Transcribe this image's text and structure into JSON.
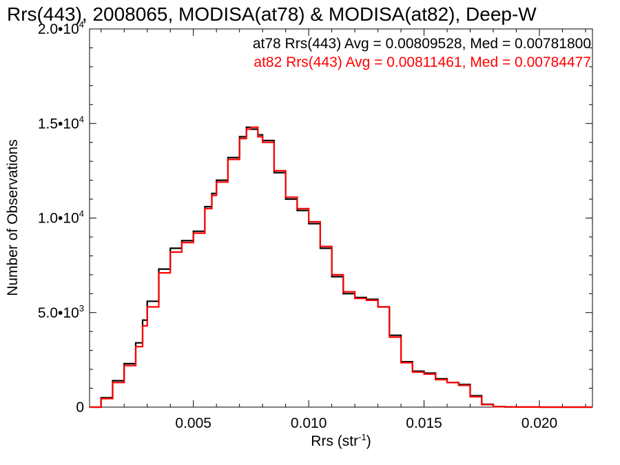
{
  "chart_data": {
    "type": "line",
    "title": "Rrs(443), 2008065, MODISA(at78) & MODISA(at82), Deep-W",
    "xlabel": "Rrs (str",
    "xlabel_sup": "-1",
    "xlabel_end": ")",
    "ylabel": "Number of Observations",
    "xlim": [
      0.0005,
      0.0223
    ],
    "ylim": [
      0,
      20000
    ],
    "xticks": [
      {
        "value": 0.005,
        "label": "0.005"
      },
      {
        "value": 0.01,
        "label": "0.010"
      },
      {
        "value": 0.015,
        "label": "0.015"
      },
      {
        "value": 0.02,
        "label": "0.020"
      }
    ],
    "yticks": [
      {
        "value": 0,
        "mant": "0",
        "exp": ""
      },
      {
        "value": 5000,
        "mant": "5.0•10",
        "exp": "3"
      },
      {
        "value": 10000,
        "mant": "1.0•10",
        "exp": "4"
      },
      {
        "value": 15000,
        "mant": "1.5•10",
        "exp": "4"
      },
      {
        "value": 20000,
        "mant": "2.0•10",
        "exp": "4"
      }
    ],
    "grid": false,
    "step": true,
    "legend": [
      {
        "text": "at78 Rrs(443) Avg = 0.00809528, Med = 0.00781800",
        "color": "#000000"
      },
      {
        "text": "at82 Rrs(443) Avg = 0.00811461, Med = 0.00784477",
        "color": "#ff0000"
      }
    ],
    "x": [
      0.0005,
      0.001,
      0.0015,
      0.002,
      0.0025,
      0.0028,
      0.003,
      0.0035,
      0.004,
      0.0045,
      0.005,
      0.0055,
      0.0058,
      0.006,
      0.0065,
      0.007,
      0.0073,
      0.0075,
      0.0078,
      0.008,
      0.0085,
      0.009,
      0.0095,
      0.01,
      0.0105,
      0.011,
      0.0115,
      0.012,
      0.0125,
      0.013,
      0.0135,
      0.014,
      0.0145,
      0.015,
      0.0155,
      0.016,
      0.0165,
      0.017,
      0.0175,
      0.018,
      0.0185,
      0.019,
      0.02,
      0.021,
      0.0223
    ],
    "series": [
      {
        "name": "at78",
        "color": "#000000",
        "values": [
          0,
          500,
          1400,
          2300,
          3400,
          4600,
          5600,
          7300,
          8400,
          8800,
          9300,
          10600,
          11300,
          12000,
          13200,
          14300,
          14800,
          14700,
          14400,
          14100,
          12400,
          11000,
          10400,
          9700,
          8400,
          6900,
          6000,
          5800,
          5700,
          5300,
          3800,
          2400,
          1900,
          1800,
          1500,
          1300,
          1200,
          600,
          150,
          30,
          10,
          5,
          0,
          0,
          0
        ]
      },
      {
        "name": "at82",
        "color": "#ff0000",
        "values": [
          0,
          450,
          1300,
          2200,
          3200,
          4300,
          5300,
          7100,
          8200,
          8700,
          9200,
          10500,
          11200,
          11900,
          13100,
          14200,
          14700,
          14800,
          14300,
          14000,
          12500,
          11100,
          10500,
          9800,
          8500,
          7000,
          6100,
          5750,
          5650,
          5300,
          3700,
          2350,
          1850,
          1750,
          1450,
          1300,
          1150,
          550,
          130,
          25,
          10,
          5,
          0,
          0,
          0
        ]
      }
    ]
  }
}
